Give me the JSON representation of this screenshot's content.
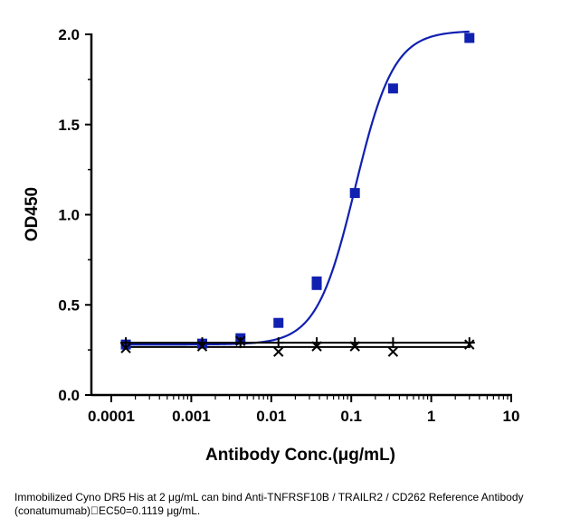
{
  "chart_data": {
    "type": "scatter",
    "xlabel": "Antibody Conc.(μg/mL)",
    "ylabel": "OD450",
    "xscale": "log",
    "xlim": [
      0.0001,
      10
    ],
    "ylim": [
      0.0,
      2.0
    ],
    "x_ticks": [
      "0.0001",
      "0.001",
      "0.01",
      "0.1",
      "1",
      "10"
    ],
    "y_ticks": [
      "0.0",
      "0.5",
      "1.0",
      "1.5",
      "2.0"
    ],
    "series": [
      {
        "marker": "square",
        "color": "#1020b0",
        "fit": "4PL",
        "ec50": 0.1119,
        "points": [
          {
            "x": 0.000152,
            "y": 0.28
          },
          {
            "x": 0.00137,
            "y": 0.285
          },
          {
            "x": 0.00412,
            "y": 0.315
          },
          {
            "x": 0.0123,
            "y": 0.4
          },
          {
            "x": 0.037,
            "y": 0.61
          },
          {
            "x": 0.037,
            "y": 0.63
          },
          {
            "x": 0.111,
            "y": 1.12
          },
          {
            "x": 0.333,
            "y": 1.7
          },
          {
            "x": 3.0,
            "y": 1.98
          }
        ]
      },
      {
        "marker": "cross",
        "color": "#000000",
        "fit": "flat",
        "points": [
          {
            "x": 0.000152,
            "y": 0.26
          },
          {
            "x": 0.00137,
            "y": 0.27
          },
          {
            "x": 0.00412,
            "y": 0.3
          },
          {
            "x": 0.0123,
            "y": 0.24
          },
          {
            "x": 0.037,
            "y": 0.27
          },
          {
            "x": 0.111,
            "y": 0.27
          },
          {
            "x": 0.333,
            "y": 0.24
          },
          {
            "x": 3.0,
            "y": 0.28
          }
        ]
      },
      {
        "marker": "plus",
        "color": "#000000",
        "fit": "flat",
        "points": [
          {
            "x": 0.000152,
            "y": 0.29
          },
          {
            "x": 0.00137,
            "y": 0.29
          },
          {
            "x": 0.00412,
            "y": 0.29
          },
          {
            "x": 0.0123,
            "y": 0.29
          },
          {
            "x": 0.037,
            "y": 0.29
          },
          {
            "x": 0.111,
            "y": 0.29
          },
          {
            "x": 0.333,
            "y": 0.29
          },
          {
            "x": 3.0,
            "y": 0.29
          }
        ]
      }
    ]
  },
  "caption": "Immobilized Cyno DR5 His at 2 μg/mL can bind  Anti-TNFRSF10B / TRAILR2 / CD262 Reference Antibody (conatumumab)\u0000EC50=0.1119 μg/mL."
}
